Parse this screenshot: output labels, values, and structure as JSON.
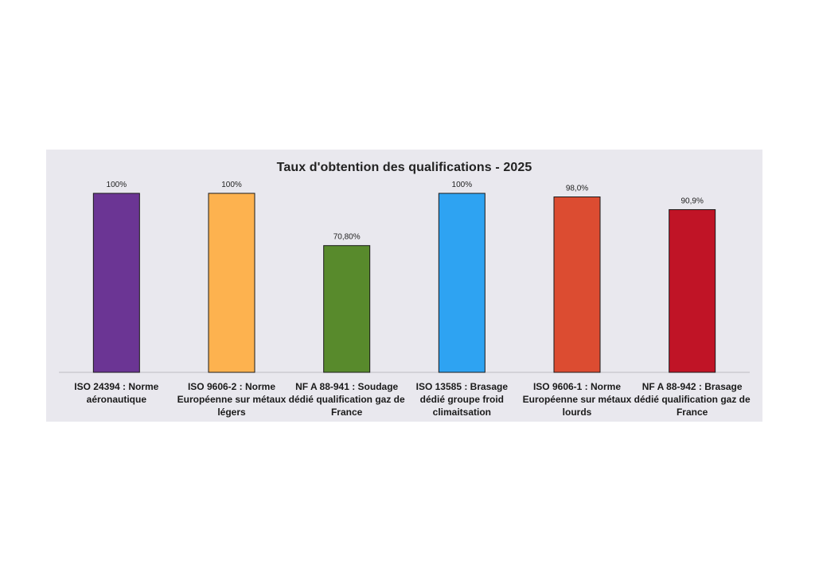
{
  "chart_data": {
    "type": "bar",
    "title": "Taux d'obtention des qualifications - 2025",
    "xlabel": "",
    "ylabel": "",
    "ylim": [
      0,
      100
    ],
    "grid": false,
    "categories": [
      "ISO 24394 : Norme aéronautique",
      "ISO 9606-2 : Norme Européenne sur métaux légers",
      "NF A 88-941 : Soudage dédié qualification gaz de France",
      "ISO 13585 : Brasage dédié groupe froid climaitsation",
      "ISO 9606-1 : Norme Européenne sur métaux lourds",
      "NF A 88-942 : Brasage dédié qualification gaz de France"
    ],
    "values": [
      100,
      100,
      70.8,
      100,
      98.0,
      90.9
    ],
    "data_labels": [
      "100%",
      "100%",
      "70,80%",
      "100%",
      "98,0%",
      "90,9%"
    ],
    "colors": [
      "#6b3594",
      "#fdb24f",
      "#588a2c",
      "#2ea3f2",
      "#dc4c31",
      "#c01426"
    ]
  }
}
